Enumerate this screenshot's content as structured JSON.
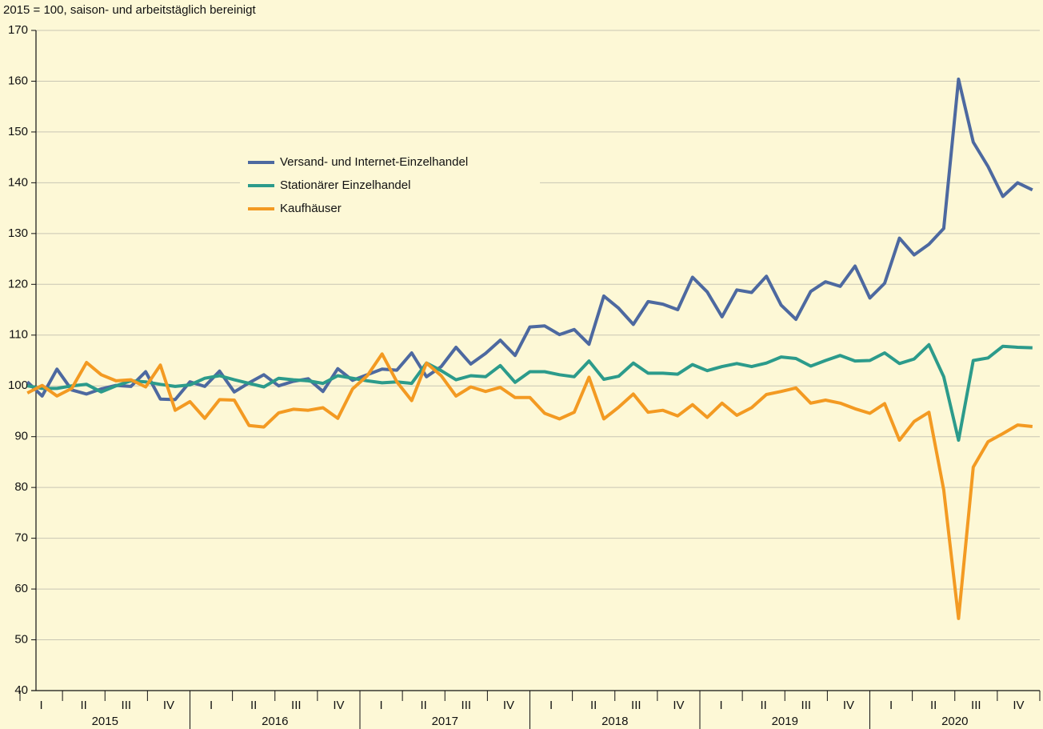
{
  "chart_data": {
    "type": "line",
    "subtitle": "2015 = 100, saison- und arbeitstäglich bereinigt",
    "years": [
      "2015",
      "2016",
      "2017",
      "2018",
      "2019",
      "2020"
    ],
    "quarters": [
      "I",
      "II",
      "III",
      "IV"
    ],
    "ylim": [
      40,
      170
    ],
    "yticks": [
      40,
      50,
      60,
      70,
      80,
      90,
      100,
      110,
      120,
      130,
      140,
      150,
      160,
      170
    ],
    "grid": true,
    "legend": "upper left",
    "series": [
      {
        "name": "Versand- und Internet-Einzelhandel",
        "color": "#4d69a0",
        "values": [
          100.8,
          98,
          103.3,
          99.2,
          98.4,
          99.4,
          100.1,
          99.9,
          102.8,
          97.4,
          97.3,
          100.8,
          99.9,
          102.9,
          98.8,
          100.6,
          102.2,
          100,
          100.9,
          101.4,
          98.9,
          103.4,
          101.1,
          102.2,
          103.3,
          103.1,
          106.5,
          101.8,
          103.8,
          107.6,
          104.3,
          106.4,
          109,
          106,
          111.6,
          111.8,
          110.1,
          111.1,
          108.2,
          117.7,
          115.3,
          112.1,
          116.6,
          116.1,
          115,
          121.4,
          118.5,
          113.6,
          118.9,
          118.4,
          121.6,
          115.9,
          113.1,
          118.6,
          120.5,
          119.6,
          123.6,
          117.3,
          120.2,
          129.1,
          125.8,
          127.9,
          131,
          160.4,
          148,
          143.2,
          137.3,
          140,
          138.6
        ]
      },
      {
        "name": "Stationärer Einzelhandel",
        "color": "#2c9b8b",
        "values": [
          100,
          99.5,
          99.5,
          100,
          100.3,
          98.8,
          100,
          101,
          100.8,
          100.3,
          99.9,
          100.2,
          101.5,
          102,
          101.2,
          100.5,
          99.8,
          101.5,
          101.2,
          101,
          100.5,
          102,
          101.5,
          101,
          100.6,
          100.8,
          100.5,
          104.5,
          103,
          101.2,
          102,
          101.8,
          104,
          100.7,
          102.8,
          102.8,
          102.2,
          101.8,
          104.9,
          101.3,
          101.9,
          104.5,
          102.5,
          102.5,
          102.3,
          104.2,
          103,
          103.8,
          104.4,
          103.8,
          104.5,
          105.7,
          105.4,
          103.9,
          105,
          106,
          104.9,
          105,
          106.5,
          104.4,
          105.3,
          108.1,
          101.8,
          89.3,
          105,
          105.5,
          107.8,
          107.6,
          107.5
        ]
      },
      {
        "name": "Kaufhäuser",
        "color": "#f39a22",
        "values": [
          98.6,
          100.1,
          98,
          99.5,
          104.6,
          102.2,
          101,
          101.2,
          99.8,
          104.1,
          95.2,
          96.9,
          93.6,
          97.3,
          97.2,
          92.2,
          91.9,
          94.7,
          95.4,
          95.2,
          95.7,
          93.6,
          99.4,
          102,
          106.3,
          100.8,
          97.1,
          104.5,
          102,
          98,
          99.8,
          98.9,
          99.7,
          97.7,
          97.7,
          94.6,
          93.5,
          94.8,
          101.7,
          93.5,
          95.8,
          98.4,
          94.8,
          95.2,
          94.1,
          96.3,
          93.8,
          96.6,
          94.2,
          95.7,
          98.3,
          98.9,
          99.6,
          96.6,
          97.2,
          96.6,
          95.5,
          94.6,
          96.5,
          89.3,
          93,
          94.8,
          79.5,
          54.2,
          84,
          89,
          90.6,
          92.3,
          92
        ]
      }
    ]
  }
}
